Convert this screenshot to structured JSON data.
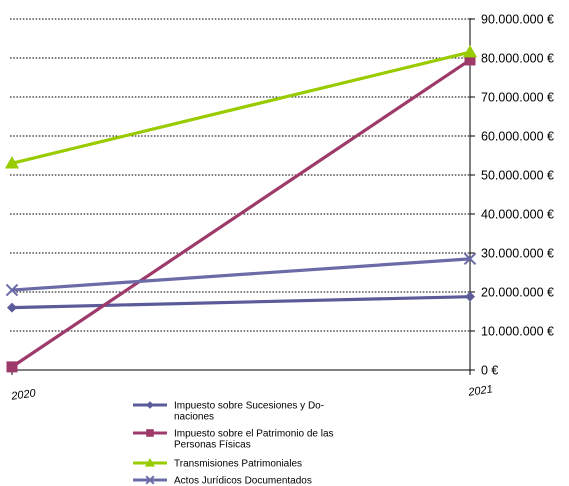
{
  "chart_data": {
    "type": "line",
    "title": "",
    "xlabel": "",
    "ylabel": "",
    "categories": [
      "2020",
      "2021"
    ],
    "ylim": [
      0,
      90000000
    ],
    "yticks": [
      0,
      10000000,
      20000000,
      30000000,
      40000000,
      50000000,
      60000000,
      70000000,
      80000000,
      90000000
    ],
    "ytick_labels": [
      "0 €",
      "10.000.000 €",
      "20.000.000 €",
      "30.000.000 €",
      "40.000.000 €",
      "50.000.000 €",
      "60.000.000 €",
      "70.000.000 €",
      "80.000.000 €",
      "90.000.000 €"
    ],
    "grid": true,
    "y_axis_side": "right",
    "legend_position": "bottom",
    "series": [
      {
        "name": "Impuesto sobre Sucesiones y Do-\nnaciones",
        "values": [
          16000000,
          18800000
        ],
        "color": "#5b5b99",
        "marker": "diamond"
      },
      {
        "name": "Impuesto sobre el Patrimonio de las\nPersonas Físicas",
        "values": [
          800000,
          79500000
        ],
        "color": "#9e3a6a",
        "marker": "square"
      },
      {
        "name": "Transmisiones Patrimoniales",
        "values": [
          53000000,
          81500000
        ],
        "color": "#99cc00",
        "marker": "triangle"
      },
      {
        "name": "Actos Jurídicos Documentados",
        "values": [
          20500000,
          28500000
        ],
        "color": "#6b6ba8",
        "marker": "x"
      }
    ]
  }
}
